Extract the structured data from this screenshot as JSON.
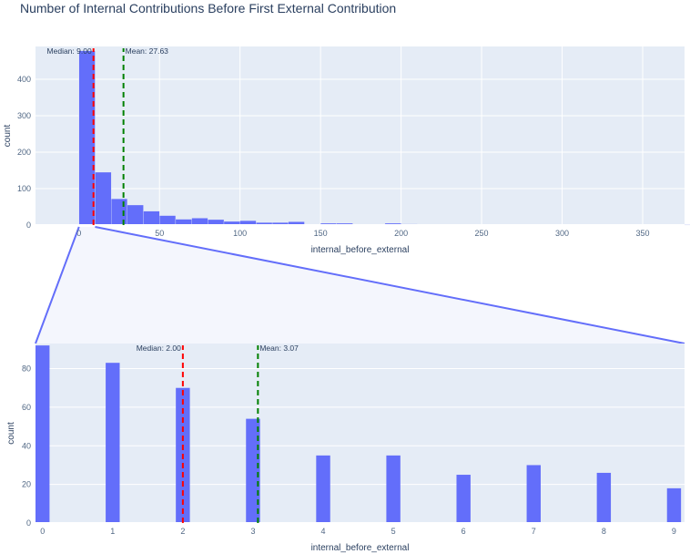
{
  "title": "Number of Internal Contributions Before First External Contribution",
  "colors": {
    "plot_bg": "#e5ecf6",
    "bar": "#636efa",
    "grid": "#ffffff",
    "median": "#ff0000",
    "mean": "#008000",
    "zoom_line": "#636efa",
    "zoom_fill": "#f4f6fd"
  },
  "chart_data": [
    {
      "type": "bar",
      "title": "",
      "xlabel": "internal_before_external",
      "ylabel": "count",
      "xlim": [
        -27,
        376
      ],
      "ylim": [
        0,
        490
      ],
      "grid": true,
      "x_ticks": [
        0,
        50,
        100,
        150,
        200,
        250,
        300,
        350
      ],
      "y_ticks": [
        0,
        100,
        200,
        300,
        400
      ],
      "bin_width": 10,
      "bins": [
        {
          "x0": 0,
          "count": 478
        },
        {
          "x0": 10,
          "count": 145
        },
        {
          "x0": 20,
          "count": 72
        },
        {
          "x0": 30,
          "count": 55
        },
        {
          "x0": 40,
          "count": 38
        },
        {
          "x0": 50,
          "count": 26
        },
        {
          "x0": 60,
          "count": 16
        },
        {
          "x0": 70,
          "count": 19
        },
        {
          "x0": 80,
          "count": 15
        },
        {
          "x0": 90,
          "count": 10
        },
        {
          "x0": 100,
          "count": 12
        },
        {
          "x0": 110,
          "count": 7
        },
        {
          "x0": 120,
          "count": 7
        },
        {
          "x0": 130,
          "count": 9
        },
        {
          "x0": 150,
          "count": 5
        },
        {
          "x0": 160,
          "count": 5
        },
        {
          "x0": 170,
          "count": 2
        },
        {
          "x0": 180,
          "count": 2
        },
        {
          "x0": 190,
          "count": 5
        },
        {
          "x0": 200,
          "count": 3
        },
        {
          "x0": 210,
          "count": 2
        },
        {
          "x0": 230,
          "count": 2
        },
        {
          "x0": 250,
          "count": 1
        },
        {
          "x0": 260,
          "count": 1
        },
        {
          "x0": 270,
          "count": 1
        },
        {
          "x0": 280,
          "count": 1
        },
        {
          "x0": 350,
          "count": 1
        },
        {
          "x0": 370,
          "count": 1
        }
      ],
      "median": {
        "value": 9.0,
        "label": "Median: 9.00"
      },
      "mean": {
        "value": 27.63,
        "label": "Mean: 27.63"
      }
    },
    {
      "type": "bar",
      "title": "",
      "xlabel": "internal_before_external",
      "ylabel": "count",
      "xlim": [
        -0.1,
        9.15
      ],
      "ylim": [
        0,
        93
      ],
      "grid": true,
      "x_ticks": [
        0,
        1,
        2,
        3,
        4,
        5,
        6,
        7,
        8,
        9
      ],
      "y_ticks": [
        0,
        20,
        40,
        60,
        80
      ],
      "bar_width": 0.2,
      "categories": [
        0,
        1,
        2,
        3,
        4,
        5,
        6,
        7,
        8,
        9
      ],
      "values": [
        92,
        83,
        70,
        54,
        35,
        35,
        25,
        30,
        26,
        18
      ],
      "median": {
        "value": 2.0,
        "label": "Median: 2.00"
      },
      "mean": {
        "value": 3.07,
        "label": "Mean: 3.07"
      }
    }
  ]
}
